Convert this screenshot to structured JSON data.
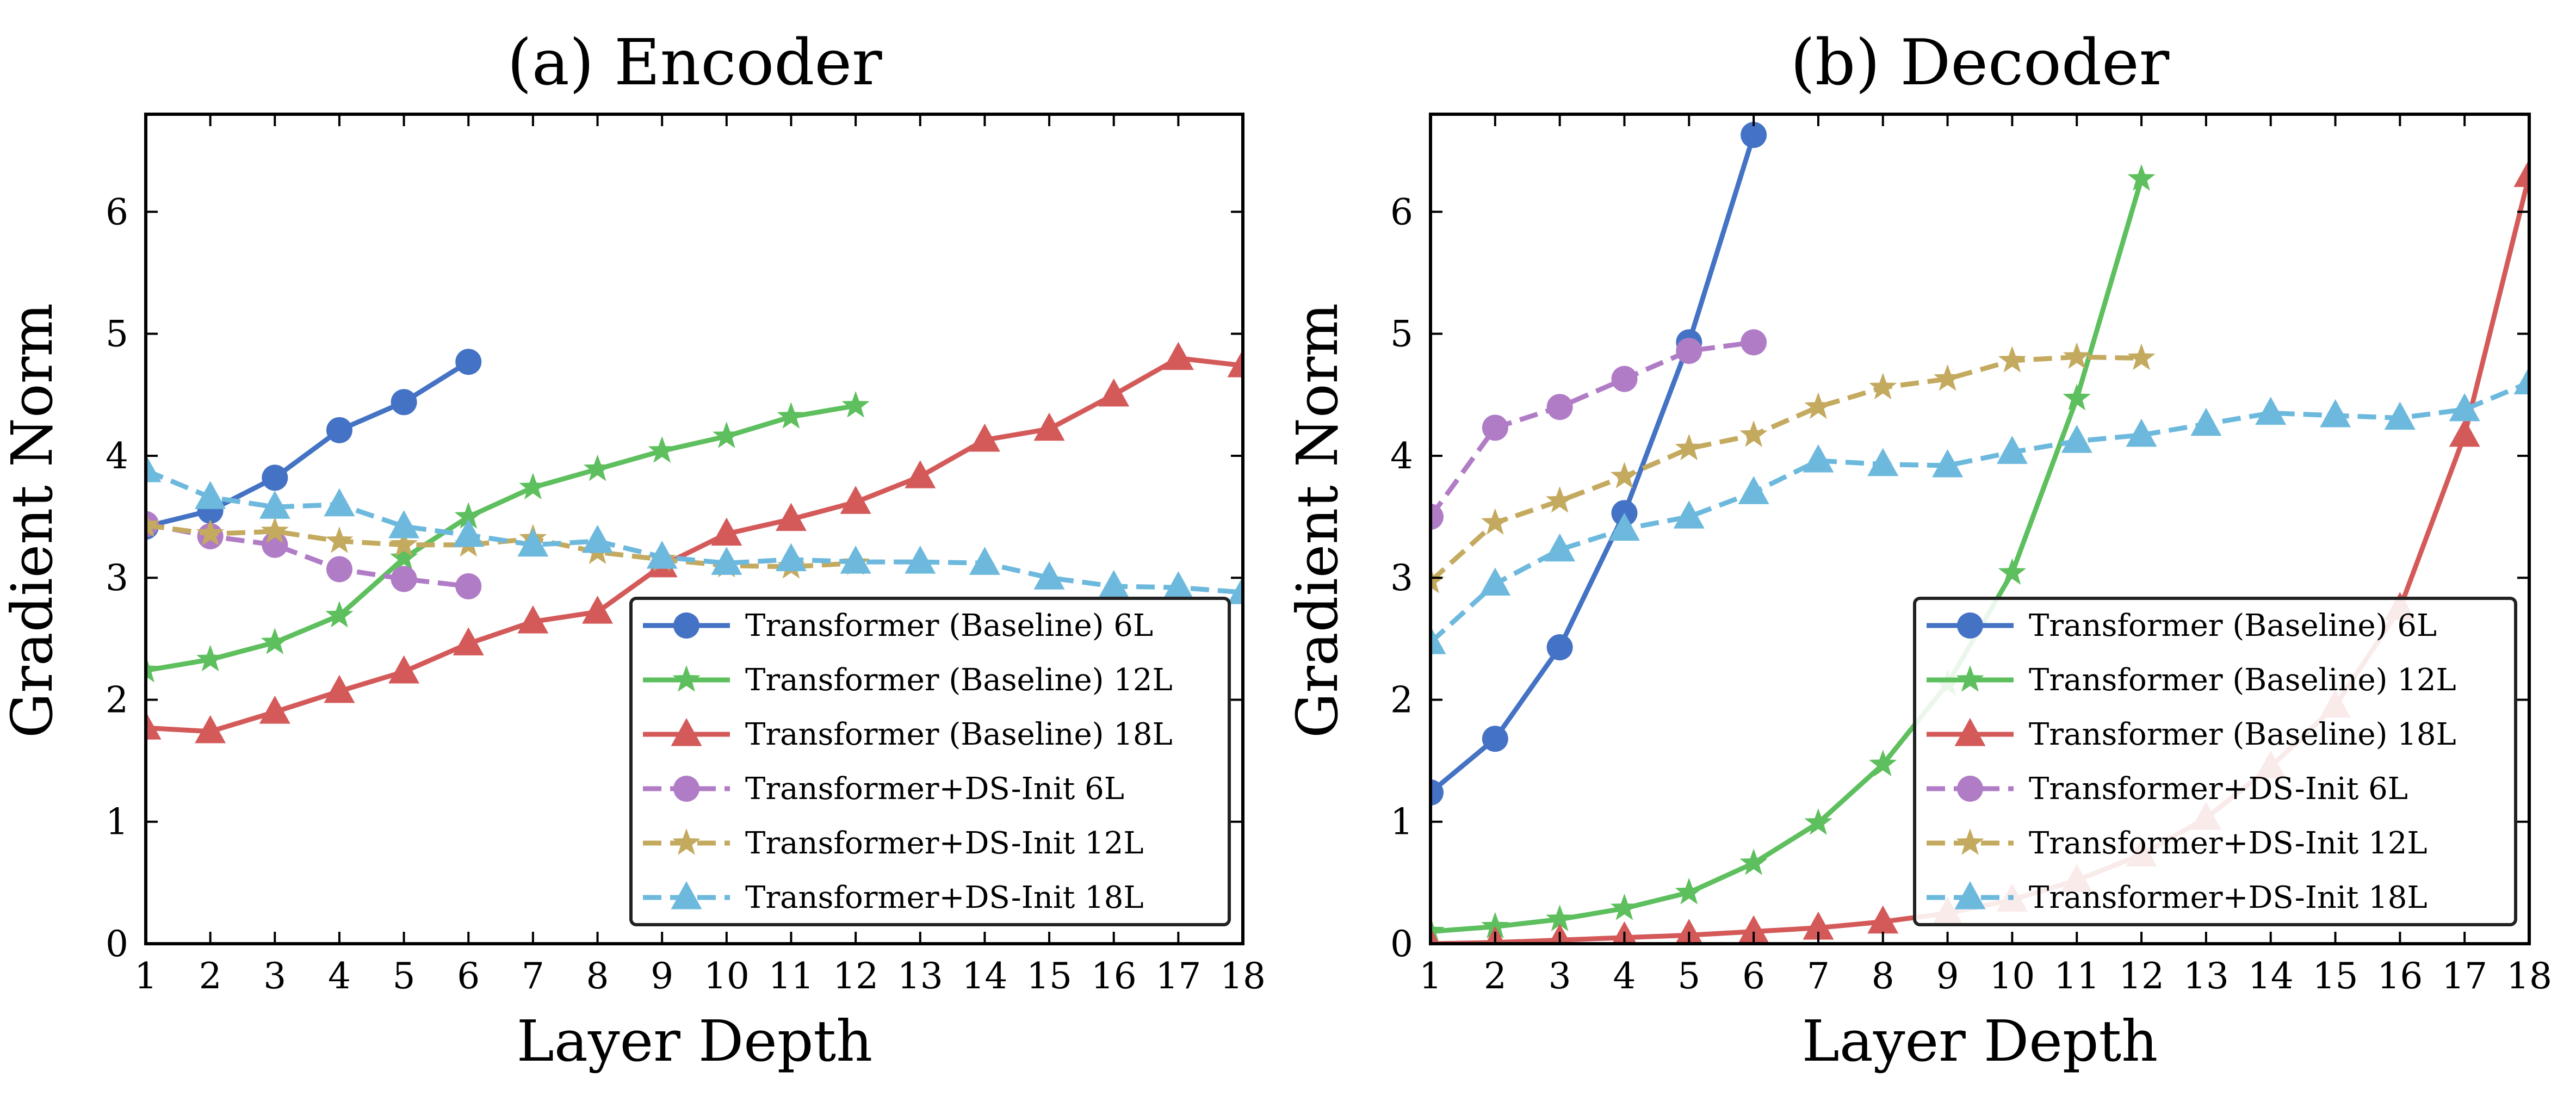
{
  "chart_data": [
    {
      "type": "line",
      "title": "(a) Encoder",
      "xlabel": "Layer Depth",
      "ylabel": "Gradient Norm",
      "xlim": [
        1,
        18
      ],
      "ylim": [
        0,
        6.8
      ],
      "xticks": [
        1,
        2,
        3,
        4,
        5,
        6,
        7,
        8,
        9,
        10,
        11,
        12,
        13,
        14,
        15,
        16,
        17,
        18
      ],
      "yticks": [
        0,
        1,
        2,
        3,
        4,
        5,
        6
      ],
      "legend_position": "lower-right",
      "series": [
        {
          "name": "Transformer (Baseline) 6L",
          "color": "#4472c4",
          "style": "solid",
          "marker": "circle",
          "x": [
            1,
            2,
            3,
            4,
            5,
            6
          ],
          "y": [
            3.42,
            3.55,
            3.82,
            4.21,
            4.44,
            4.77
          ]
        },
        {
          "name": "Transformer (Baseline) 12L",
          "color": "#5dbf5d",
          "style": "solid",
          "marker": "star",
          "x": [
            1,
            2,
            3,
            4,
            5,
            6,
            7,
            8,
            9,
            10,
            11,
            12
          ],
          "y": [
            2.24,
            2.33,
            2.47,
            2.69,
            3.16,
            3.5,
            3.74,
            3.89,
            4.04,
            4.16,
            4.32,
            4.41
          ]
        },
        {
          "name": "Transformer (Baseline) 18L",
          "color": "#d45a5a",
          "style": "solid",
          "marker": "triangle",
          "x": [
            1,
            2,
            3,
            4,
            5,
            6,
            7,
            8,
            9,
            10,
            11,
            12,
            13,
            14,
            15,
            16,
            17,
            18
          ],
          "y": [
            1.77,
            1.74,
            1.9,
            2.07,
            2.23,
            2.46,
            2.64,
            2.72,
            3.1,
            3.36,
            3.48,
            3.62,
            3.83,
            4.13,
            4.22,
            4.5,
            4.8,
            4.74
          ]
        },
        {
          "name": "Transformer+DS-Init 6L",
          "color": "#b07cc6",
          "style": "dashed",
          "marker": "circle",
          "x": [
            1,
            2,
            3,
            4,
            5,
            6
          ],
          "y": [
            3.44,
            3.34,
            3.27,
            3.07,
            2.99,
            2.93
          ]
        },
        {
          "name": "Transformer+DS-Init 12L",
          "color": "#c4aa5f",
          "style": "dashed",
          "marker": "star",
          "x": [
            1,
            2,
            3,
            4,
            5,
            6,
            7,
            8,
            9,
            10,
            11,
            12
          ],
          "y": [
            3.43,
            3.36,
            3.38,
            3.3,
            3.27,
            3.27,
            3.32,
            3.21,
            3.15,
            3.1,
            3.09,
            3.12
          ]
        },
        {
          "name": "Transformer+DS-Init 18L",
          "color": "#6db9dd",
          "style": "dashed",
          "marker": "triangle",
          "x": [
            1,
            2,
            3,
            4,
            5,
            6,
            7,
            8,
            9,
            10,
            11,
            12,
            13,
            14,
            15,
            16,
            17,
            18
          ],
          "y": [
            3.88,
            3.66,
            3.58,
            3.6,
            3.42,
            3.35,
            3.27,
            3.3,
            3.17,
            3.12,
            3.15,
            3.13,
            3.13,
            3.12,
            3.0,
            2.93,
            2.92,
            2.88
          ]
        }
      ]
    },
    {
      "type": "line",
      "title": "(b) Decoder",
      "xlabel": "Layer Depth",
      "ylabel": "Gradient Norm",
      "xlim": [
        1,
        18
      ],
      "ylim": [
        0,
        6.8
      ],
      "xticks": [
        1,
        2,
        3,
        4,
        5,
        6,
        7,
        8,
        9,
        10,
        11,
        12,
        13,
        14,
        15,
        16,
        17,
        18
      ],
      "yticks": [
        0,
        1,
        2,
        3,
        4,
        5,
        6
      ],
      "legend_position": "lower-right",
      "series": [
        {
          "name": "Transformer (Baseline) 6L",
          "color": "#4472c4",
          "style": "solid",
          "marker": "circle",
          "x": [
            1,
            2,
            3,
            4,
            5,
            6
          ],
          "y": [
            1.24,
            1.68,
            2.43,
            3.53,
            4.93,
            6.63
          ]
        },
        {
          "name": "Transformer (Baseline) 12L",
          "color": "#5dbf5d",
          "style": "solid",
          "marker": "star",
          "x": [
            1,
            2,
            3,
            4,
            5,
            6,
            7,
            8,
            9,
            10,
            11,
            12
          ],
          "y": [
            0.1,
            0.14,
            0.2,
            0.29,
            0.42,
            0.66,
            0.99,
            1.47,
            2.13,
            3.04,
            4.47,
            6.27
          ]
        },
        {
          "name": "Transformer (Baseline) 18L",
          "color": "#d45a5a",
          "style": "solid",
          "marker": "triangle",
          "x": [
            1,
            2,
            3,
            4,
            5,
            6,
            7,
            8,
            9,
            10,
            11,
            12,
            13,
            14,
            15,
            16,
            17,
            18
          ],
          "y": [
            0.0,
            0.01,
            0.03,
            0.05,
            0.07,
            0.1,
            0.13,
            0.18,
            0.25,
            0.36,
            0.52,
            0.73,
            1.03,
            1.45,
            1.95,
            2.75,
            4.17,
            6.3
          ]
        },
        {
          "name": "Transformer+DS-Init 6L",
          "color": "#b07cc6",
          "style": "dashed",
          "marker": "circle",
          "x": [
            1,
            2,
            3,
            4,
            5,
            6
          ],
          "y": [
            3.5,
            4.23,
            4.4,
            4.63,
            4.86,
            4.93
          ]
        },
        {
          "name": "Transformer+DS-Init 12L",
          "color": "#c4aa5f",
          "style": "dashed",
          "marker": "star",
          "x": [
            1,
            2,
            3,
            4,
            5,
            6,
            7,
            8,
            9,
            10,
            11,
            12
          ],
          "y": [
            2.97,
            3.45,
            3.63,
            3.83,
            4.06,
            4.17,
            4.4,
            4.56,
            4.63,
            4.78,
            4.81,
            4.8
          ]
        },
        {
          "name": "Transformer+DS-Init 18L",
          "color": "#6db9dd",
          "style": "dashed",
          "marker": "triangle",
          "x": [
            1,
            2,
            3,
            4,
            5,
            6,
            7,
            8,
            9,
            10,
            11,
            12,
            13,
            14,
            15,
            16,
            17,
            18
          ],
          "y": [
            2.47,
            2.95,
            3.23,
            3.4,
            3.5,
            3.7,
            3.96,
            3.93,
            3.92,
            4.03,
            4.12,
            4.17,
            4.26,
            4.35,
            4.33,
            4.31,
            4.38,
            4.6
          ]
        }
      ]
    }
  ]
}
